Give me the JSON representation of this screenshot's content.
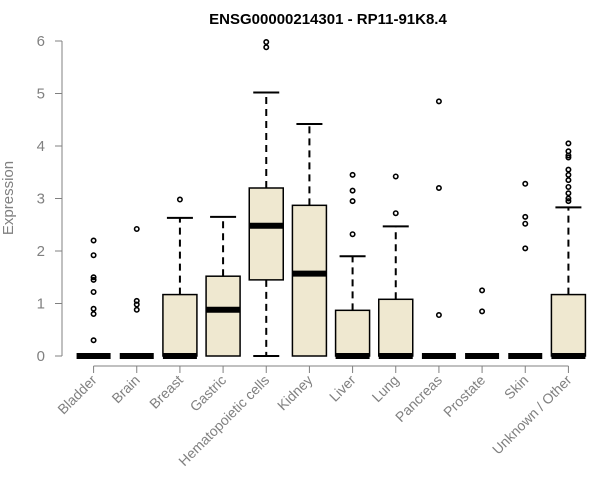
{
  "chart_data": {
    "type": "box",
    "title": "ENSG00000214301 - RP11-91K8.4",
    "xlabel": "",
    "ylabel": "Expression",
    "ylim": [
      0,
      6
    ],
    "yticks": [
      0,
      1,
      2,
      3,
      4,
      5,
      6
    ],
    "box_fill": "#efe8d0",
    "line_color": "#000000",
    "axis_color": "#808080",
    "categories": [
      "Bladder",
      "Brain",
      "Breast",
      "Gastric",
      "Hematopoietic cells",
      "Kidney",
      "Liver",
      "Lung",
      "Pancreas",
      "Prostate",
      "Skin",
      "Unknown / Other"
    ],
    "boxes": [
      {
        "name": "Bladder",
        "min": 0,
        "q1": 0,
        "median": 0,
        "q3": 0,
        "max": 0,
        "outliers": [
          2.2,
          1.92,
          1.5,
          1.45,
          1.22,
          0.9,
          0.8,
          0.3
        ]
      },
      {
        "name": "Brain",
        "min": 0,
        "q1": 0,
        "median": 0,
        "q3": 0,
        "max": 0,
        "outliers": [
          2.42,
          1.05,
          0.98,
          0.88
        ]
      },
      {
        "name": "Breast",
        "min": 0,
        "q1": 0,
        "median": 0,
        "q3": 1.17,
        "max": 2.63,
        "outliers": [
          2.98
        ]
      },
      {
        "name": "Gastric",
        "min": 0,
        "q1": 0,
        "median": 0.88,
        "q3": 1.52,
        "max": 2.65,
        "outliers": []
      },
      {
        "name": "Hematopoietic cells",
        "min": 0,
        "q1": 1.45,
        "median": 2.48,
        "q3": 3.2,
        "max": 5.02,
        "outliers": [
          5.98,
          5.88
        ]
      },
      {
        "name": "Kidney",
        "min": 0,
        "q1": 0,
        "median": 1.57,
        "q3": 2.87,
        "max": 4.42,
        "outliers": []
      },
      {
        "name": "Liver",
        "min": 0,
        "q1": 0,
        "median": 0,
        "q3": 0.87,
        "max": 1.9,
        "outliers": [
          3.45,
          3.15,
          2.95,
          2.32
        ]
      },
      {
        "name": "Lung",
        "min": 0,
        "q1": 0,
        "median": 0,
        "q3": 1.08,
        "max": 2.47,
        "outliers": [
          3.42,
          2.72
        ]
      },
      {
        "name": "Pancreas",
        "min": 0,
        "q1": 0,
        "median": 0,
        "q3": 0,
        "max": 0,
        "outliers": [
          4.85,
          3.2,
          0.78
        ]
      },
      {
        "name": "Prostate",
        "min": 0,
        "q1": 0,
        "median": 0,
        "q3": 0,
        "max": 0,
        "outliers": [
          1.25,
          0.85
        ]
      },
      {
        "name": "Skin",
        "min": 0,
        "q1": 0,
        "median": 0,
        "q3": 0,
        "max": 0,
        "outliers": [
          3.28,
          2.65,
          2.52,
          2.05
        ]
      },
      {
        "name": "Unknown / Other",
        "min": 0,
        "q1": 0,
        "median": 0,
        "q3": 1.17,
        "max": 2.83,
        "outliers": [
          4.05,
          3.9,
          3.82,
          3.78,
          3.55,
          3.45,
          3.35,
          3.22,
          3.1,
          3.0,
          2.95
        ]
      }
    ]
  }
}
